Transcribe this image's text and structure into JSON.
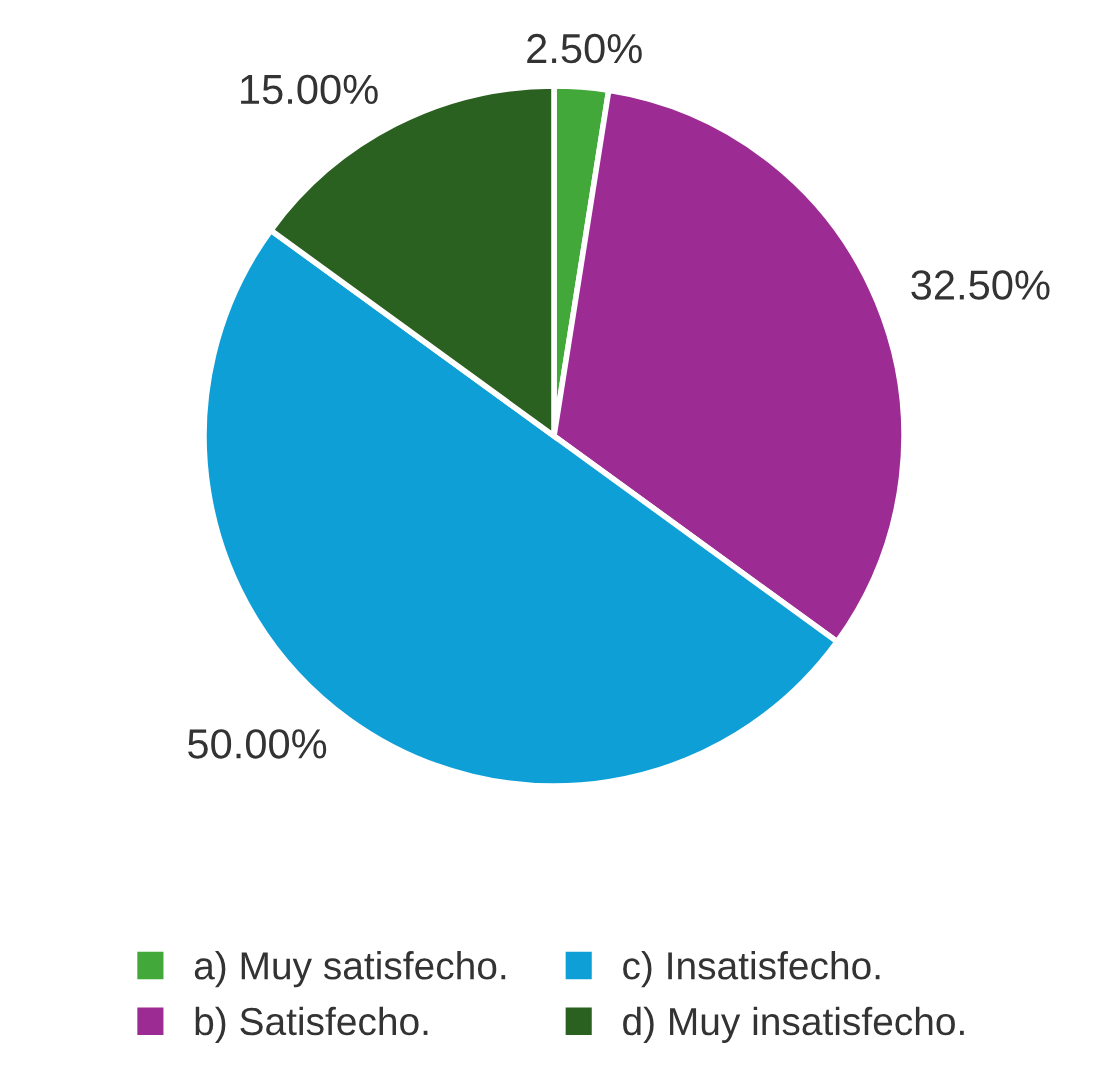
{
  "chart_data": {
    "type": "pie",
    "categories": [
      "a) Muy satisfecho.",
      "b) Satisfecho.",
      "c) Insatisfecho.",
      "d) Muy insatisfecho."
    ],
    "values": [
      2.5,
      32.5,
      50,
      15
    ],
    "colors": [
      "#43a83a",
      "#9c2b94",
      "#0f9fd7",
      "#2b6120"
    ],
    "value_labels": [
      "2.50%",
      "32.50%",
      "50.00%",
      "15.00%"
    ],
    "legend": "bottom"
  }
}
